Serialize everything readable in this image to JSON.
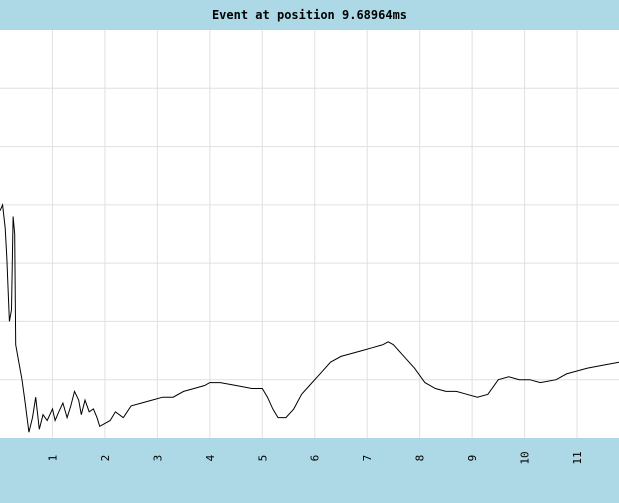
{
  "title": "Event at position 9.68964ms",
  "colors": {
    "title_bg": "#add8e6",
    "axis_bg": "#add8e6",
    "grid": "#e0e0e0",
    "line": "#000000"
  },
  "chart_data": {
    "type": "line",
    "title": "Event at position 9.68964ms",
    "xlabel": "",
    "ylabel": "",
    "xlim": [
      0.0,
      11.8
    ],
    "ylim": [
      0,
      7
    ],
    "x_ticks": [
      "1",
      "2",
      "3",
      "4",
      "5",
      "6",
      "7",
      "8",
      "9",
      "10",
      "11"
    ],
    "grid": true,
    "series": [
      {
        "values": [
          [
            0.0,
            3.9
          ],
          [
            0.05,
            4.0
          ],
          [
            0.1,
            3.6
          ],
          [
            0.13,
            3.1
          ],
          [
            0.18,
            2.0
          ],
          [
            0.22,
            2.2
          ],
          [
            0.25,
            3.8
          ],
          [
            0.28,
            3.5
          ],
          [
            0.3,
            1.6
          ],
          [
            0.38,
            1.2
          ],
          [
            0.42,
            1.0
          ],
          [
            0.48,
            0.6
          ],
          [
            0.55,
            0.1
          ],
          [
            0.62,
            0.35
          ],
          [
            0.68,
            0.7
          ],
          [
            0.75,
            0.15
          ],
          [
            0.82,
            0.4
          ],
          [
            0.9,
            0.3
          ],
          [
            1.0,
            0.5
          ],
          [
            1.05,
            0.3
          ],
          [
            1.12,
            0.45
          ],
          [
            1.2,
            0.6
          ],
          [
            1.28,
            0.35
          ],
          [
            1.35,
            0.55
          ],
          [
            1.42,
            0.8
          ],
          [
            1.5,
            0.65
          ],
          [
            1.55,
            0.4
          ],
          [
            1.62,
            0.65
          ],
          [
            1.7,
            0.45
          ],
          [
            1.78,
            0.5
          ],
          [
            1.85,
            0.35
          ],
          [
            1.9,
            0.2
          ],
          [
            2.0,
            0.25
          ],
          [
            2.1,
            0.3
          ],
          [
            2.2,
            0.45
          ],
          [
            2.35,
            0.35
          ],
          [
            2.5,
            0.55
          ],
          [
            2.7,
            0.6
          ],
          [
            2.9,
            0.65
          ],
          [
            3.1,
            0.7
          ],
          [
            3.3,
            0.7
          ],
          [
            3.5,
            0.8
          ],
          [
            3.7,
            0.85
          ],
          [
            3.9,
            0.9
          ],
          [
            4.0,
            0.95
          ],
          [
            4.2,
            0.95
          ],
          [
            4.5,
            0.9
          ],
          [
            4.8,
            0.85
          ],
          [
            5.0,
            0.85
          ],
          [
            5.1,
            0.7
          ],
          [
            5.2,
            0.5
          ],
          [
            5.3,
            0.35
          ],
          [
            5.45,
            0.35
          ],
          [
            5.6,
            0.5
          ],
          [
            5.75,
            0.75
          ],
          [
            5.9,
            0.9
          ],
          [
            6.1,
            1.1
          ],
          [
            6.3,
            1.3
          ],
          [
            6.5,
            1.4
          ],
          [
            6.7,
            1.45
          ],
          [
            6.9,
            1.5
          ],
          [
            7.1,
            1.55
          ],
          [
            7.3,
            1.6
          ],
          [
            7.4,
            1.65
          ],
          [
            7.5,
            1.6
          ],
          [
            7.7,
            1.4
          ],
          [
            7.9,
            1.2
          ],
          [
            8.1,
            0.95
          ],
          [
            8.3,
            0.85
          ],
          [
            8.5,
            0.8
          ],
          [
            8.7,
            0.8
          ],
          [
            8.9,
            0.75
          ],
          [
            9.1,
            0.7
          ],
          [
            9.3,
            0.75
          ],
          [
            9.5,
            1.0
          ],
          [
            9.7,
            1.05
          ],
          [
            9.9,
            1.0
          ],
          [
            10.1,
            1.0
          ],
          [
            10.3,
            0.95
          ],
          [
            10.6,
            1.0
          ],
          [
            10.8,
            1.1
          ],
          [
            11.0,
            1.15
          ],
          [
            11.2,
            1.2
          ],
          [
            11.5,
            1.25
          ],
          [
            11.8,
            1.3
          ]
        ]
      }
    ]
  }
}
